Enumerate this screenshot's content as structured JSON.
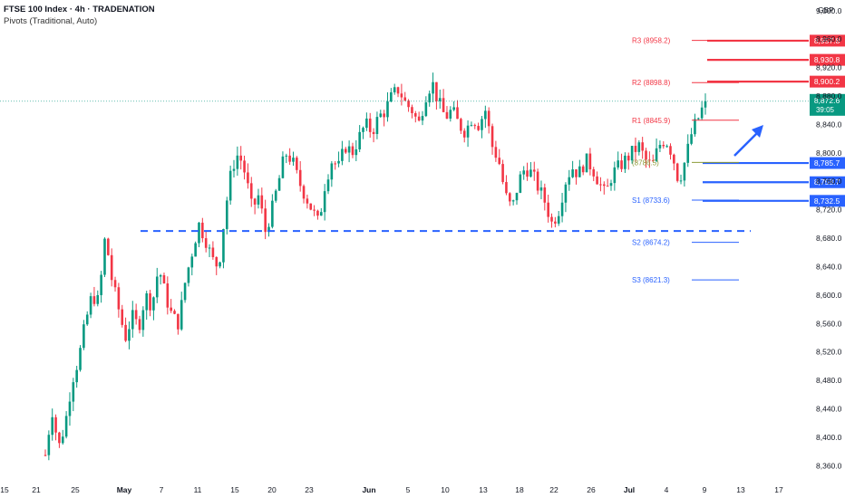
{
  "header": {
    "title": "FTSE 100 Index · 4h · TRADENATION",
    "indicator": "Pivots (Traditional, Auto)"
  },
  "currency": "GBP",
  "colors": {
    "up": "#089981",
    "down": "#f23645",
    "resistance": "#f23645",
    "support": "#2962ff",
    "last_price": "#089981",
    "pivot_p": "#8d9c3a"
  },
  "chart_data": {
    "type": "candlestick",
    "ylim": [
      8340,
      9015
    ],
    "y_ticks": [
      8360,
      8400,
      8440,
      8480,
      8520,
      8560,
      8600,
      8640,
      8680,
      8720,
      8760,
      8800,
      8840,
      8880,
      8920,
      8960,
      9000
    ],
    "y_tick_labels": [
      "8,360.0",
      "8,400.0",
      "8,440.0",
      "8,480.0",
      "8,520.0",
      "8,560.0",
      "8,600.0",
      "8,640.0",
      "8,680.0",
      "8,720.0",
      "8,760.0",
      "8,800.0",
      "8,840.0",
      "8,880.0",
      "8,920.0",
      "8,960.0",
      "9,000.0"
    ],
    "x_ticks": [
      "15",
      "21",
      "25",
      "May",
      "7",
      "11",
      "15",
      "20",
      "23",
      "Jun",
      "5",
      "10",
      "13",
      "18",
      "22",
      "26",
      "Jul",
      "4",
      "9",
      "13",
      "17"
    ],
    "ohlc_path": [
      8375,
      8440,
      8385,
      8420,
      8480,
      8510,
      8560,
      8600,
      8590,
      8685,
      8620,
      8580,
      8540,
      8570,
      8555,
      8600,
      8585,
      8640,
      8600,
      8570,
      8560,
      8620,
      8660,
      8700,
      8680,
      8650,
      8640,
      8720,
      8780,
      8800,
      8770,
      8720,
      8740,
      8690,
      8720,
      8760,
      8800,
      8790,
      8760,
      8740,
      8720,
      8700,
      8760,
      8790,
      8780,
      8810,
      8800,
      8820,
      8840,
      8830,
      8850,
      8860,
      8880,
      8890,
      8870,
      8860,
      8840,
      8880,
      8900,
      8870,
      8850,
      8860,
      8840,
      8830,
      8850,
      8840,
      8860,
      8810,
      8790,
      8740,
      8720,
      8760,
      8780,
      8770,
      8750,
      8730,
      8700,
      8720,
      8760,
      8780,
      8770,
      8790,
      8780,
      8760,
      8740,
      8770,
      8780,
      8790,
      8800,
      8810,
      8790,
      8780,
      8810,
      8820,
      8800,
      8760,
      8790,
      8830,
      8850,
      8872.6
    ],
    "last_price": "8,872.6",
    "countdown": "39:05",
    "pivots": [
      {
        "name": "R3",
        "label": "R3 (8958.2)",
        "value": 8958.2
      },
      {
        "name": "R2",
        "label": "R2 (8898.8)",
        "value": 8898.8
      },
      {
        "name": "R1",
        "label": "R1 (8845.9)",
        "value": 8845.9
      },
      {
        "name": "P",
        "label": "(8786.5)",
        "value": 8786.5
      },
      {
        "name": "S1",
        "label": "S1 (8733.6)",
        "value": 8733.6
      },
      {
        "name": "S2",
        "label": "S2 (8674.2)",
        "value": 8674.2
      },
      {
        "name": "S3",
        "label": "S3 (8621.3)",
        "value": 8621.3
      }
    ],
    "resistance_levels": [
      {
        "value": 8957.8,
        "label": "8,957.8"
      },
      {
        "value": 8930.8,
        "label": "8,930.8"
      },
      {
        "value": 8900.2,
        "label": "8,900.2"
      }
    ],
    "support_levels": [
      {
        "value": 8785.7,
        "label": "8,785.7"
      },
      {
        "value": 8758.7,
        "label": "8,758.7"
      },
      {
        "value": 8732.5,
        "label": "8,732.5"
      }
    ],
    "dashed_support": 8690,
    "annotation": "up-arrow"
  }
}
